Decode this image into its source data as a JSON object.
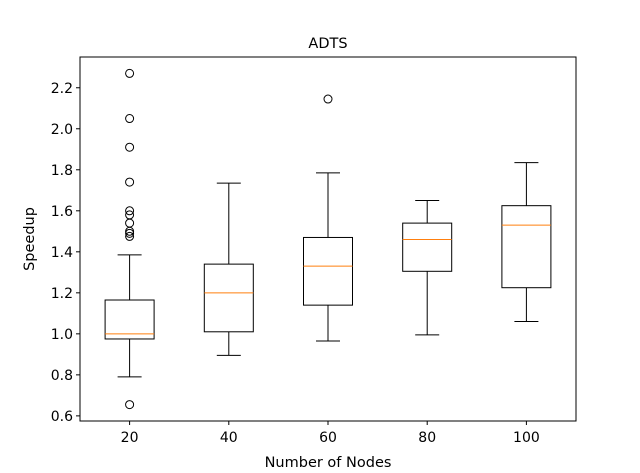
{
  "chart_data": {
    "type": "box",
    "title": "ADTS",
    "xlabel": "Number of Nodes",
    "ylabel": "Speedup",
    "categories": [
      "20",
      "40",
      "60",
      "80",
      "100"
    ],
    "ylim": [
      0.575,
      2.35
    ],
    "yticks": [
      0.6,
      0.8,
      1.0,
      1.2,
      1.4,
      1.6,
      1.8,
      2.0,
      2.2
    ],
    "ytick_labels": [
      "0.6",
      "0.8",
      "1.0",
      "1.2",
      "1.4",
      "1.6",
      "1.8",
      "2.0",
      "2.2"
    ],
    "grid": false,
    "colors": {
      "box": "#000000",
      "median": "#ff7f0e",
      "flier": "#000000"
    },
    "boxes": [
      {
        "category": "20",
        "whisker_low": 0.79,
        "q1": 0.975,
        "median": 1.0,
        "q3": 1.165,
        "whisker_high": 1.385,
        "fliers": [
          0.655,
          1.475,
          1.49,
          1.5,
          1.54,
          1.58,
          1.6,
          1.74,
          1.91,
          2.05,
          2.27
        ]
      },
      {
        "category": "40",
        "whisker_low": 0.895,
        "q1": 1.01,
        "median": 1.2,
        "q3": 1.34,
        "whisker_high": 1.735,
        "fliers": []
      },
      {
        "category": "60",
        "whisker_low": 0.965,
        "q1": 1.14,
        "median": 1.33,
        "q3": 1.47,
        "whisker_high": 1.785,
        "fliers": [
          2.145
        ]
      },
      {
        "category": "80",
        "whisker_low": 0.995,
        "q1": 1.305,
        "median": 1.46,
        "q3": 1.54,
        "whisker_high": 1.65,
        "fliers": []
      },
      {
        "category": "100",
        "whisker_low": 1.06,
        "q1": 1.225,
        "median": 1.53,
        "q3": 1.625,
        "whisker_high": 1.835,
        "fliers": []
      }
    ]
  }
}
